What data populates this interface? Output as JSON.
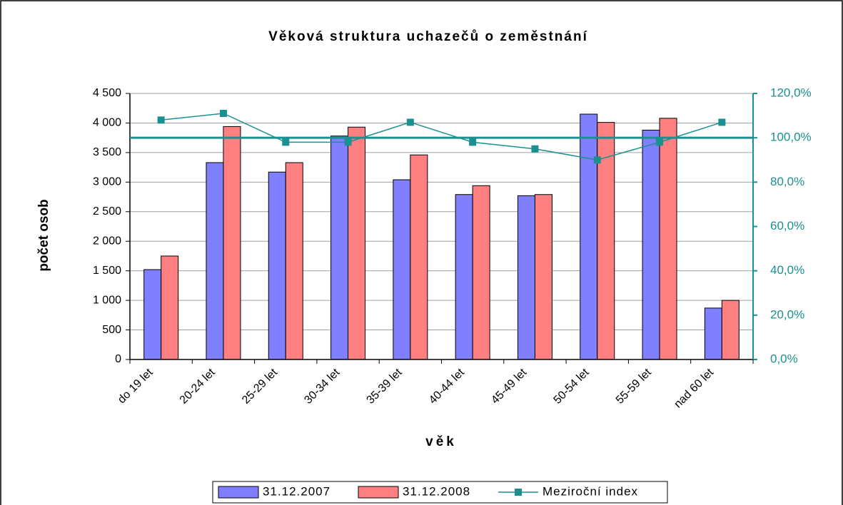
{
  "chart_data": {
    "type": "bar",
    "title": "Věková struktura uchazečů o zeměstnání",
    "x_label": "věk",
    "y_label": "počet osob",
    "categories": [
      "do 19 let",
      "20-24 let",
      "25-29 let",
      "30-34 let",
      "35-39 let",
      "40-44 let",
      "45-49 let",
      "50-54 let",
      "55-59 let",
      "nad 60 let"
    ],
    "series": [
      {
        "name": "31.12.2007",
        "color": "#8080ff",
        "values": [
          1520,
          3330,
          3170,
          3780,
          3040,
          2790,
          2770,
          4150,
          3880,
          870
        ]
      },
      {
        "name": "31.12.2008",
        "color": "#ff8080",
        "values": [
          1750,
          3940,
          3330,
          3930,
          3460,
          2940,
          2790,
          4010,
          4080,
          1000
        ]
      },
      {
        "name": "Meziroční index",
        "color": "#1a9090",
        "type": "line",
        "axis": "y2",
        "values": [
          108,
          111,
          98,
          98,
          107,
          98,
          95,
          90,
          98,
          107
        ]
      }
    ],
    "reference_line": {
      "axis": "y2",
      "value": 100,
      "color": "#1a9090"
    },
    "ylim": [
      0,
      4500
    ],
    "yticks": [
      0,
      500,
      {
        "value": 1000,
        "label": "1 000"
      },
      {
        "value": 1500,
        "label": "1 500"
      },
      {
        "value": 2000,
        "label": "2 000"
      },
      {
        "value": 2500,
        "label": "2 500"
      },
      {
        "value": 3000,
        "label": "3 000"
      },
      {
        "value": 3500,
        "label": "3 500"
      },
      {
        "value": 4000,
        "label": "4 000"
      },
      {
        "value": 4500,
        "label": "4 500"
      }
    ],
    "y2lim": [
      0,
      120
    ],
    "y2ticks": [
      {
        "value": 0,
        "label": "0,0%"
      },
      {
        "value": 20,
        "label": "20,0%"
      },
      {
        "value": 40,
        "label": "40,0%"
      },
      {
        "value": 60,
        "label": "60,0%"
      },
      {
        "value": 80,
        "label": "80,0%"
      },
      {
        "value": 100,
        "label": "100,0%"
      },
      {
        "value": 120,
        "label": "120,0%"
      }
    ],
    "grid": true,
    "legend": "bottom"
  }
}
